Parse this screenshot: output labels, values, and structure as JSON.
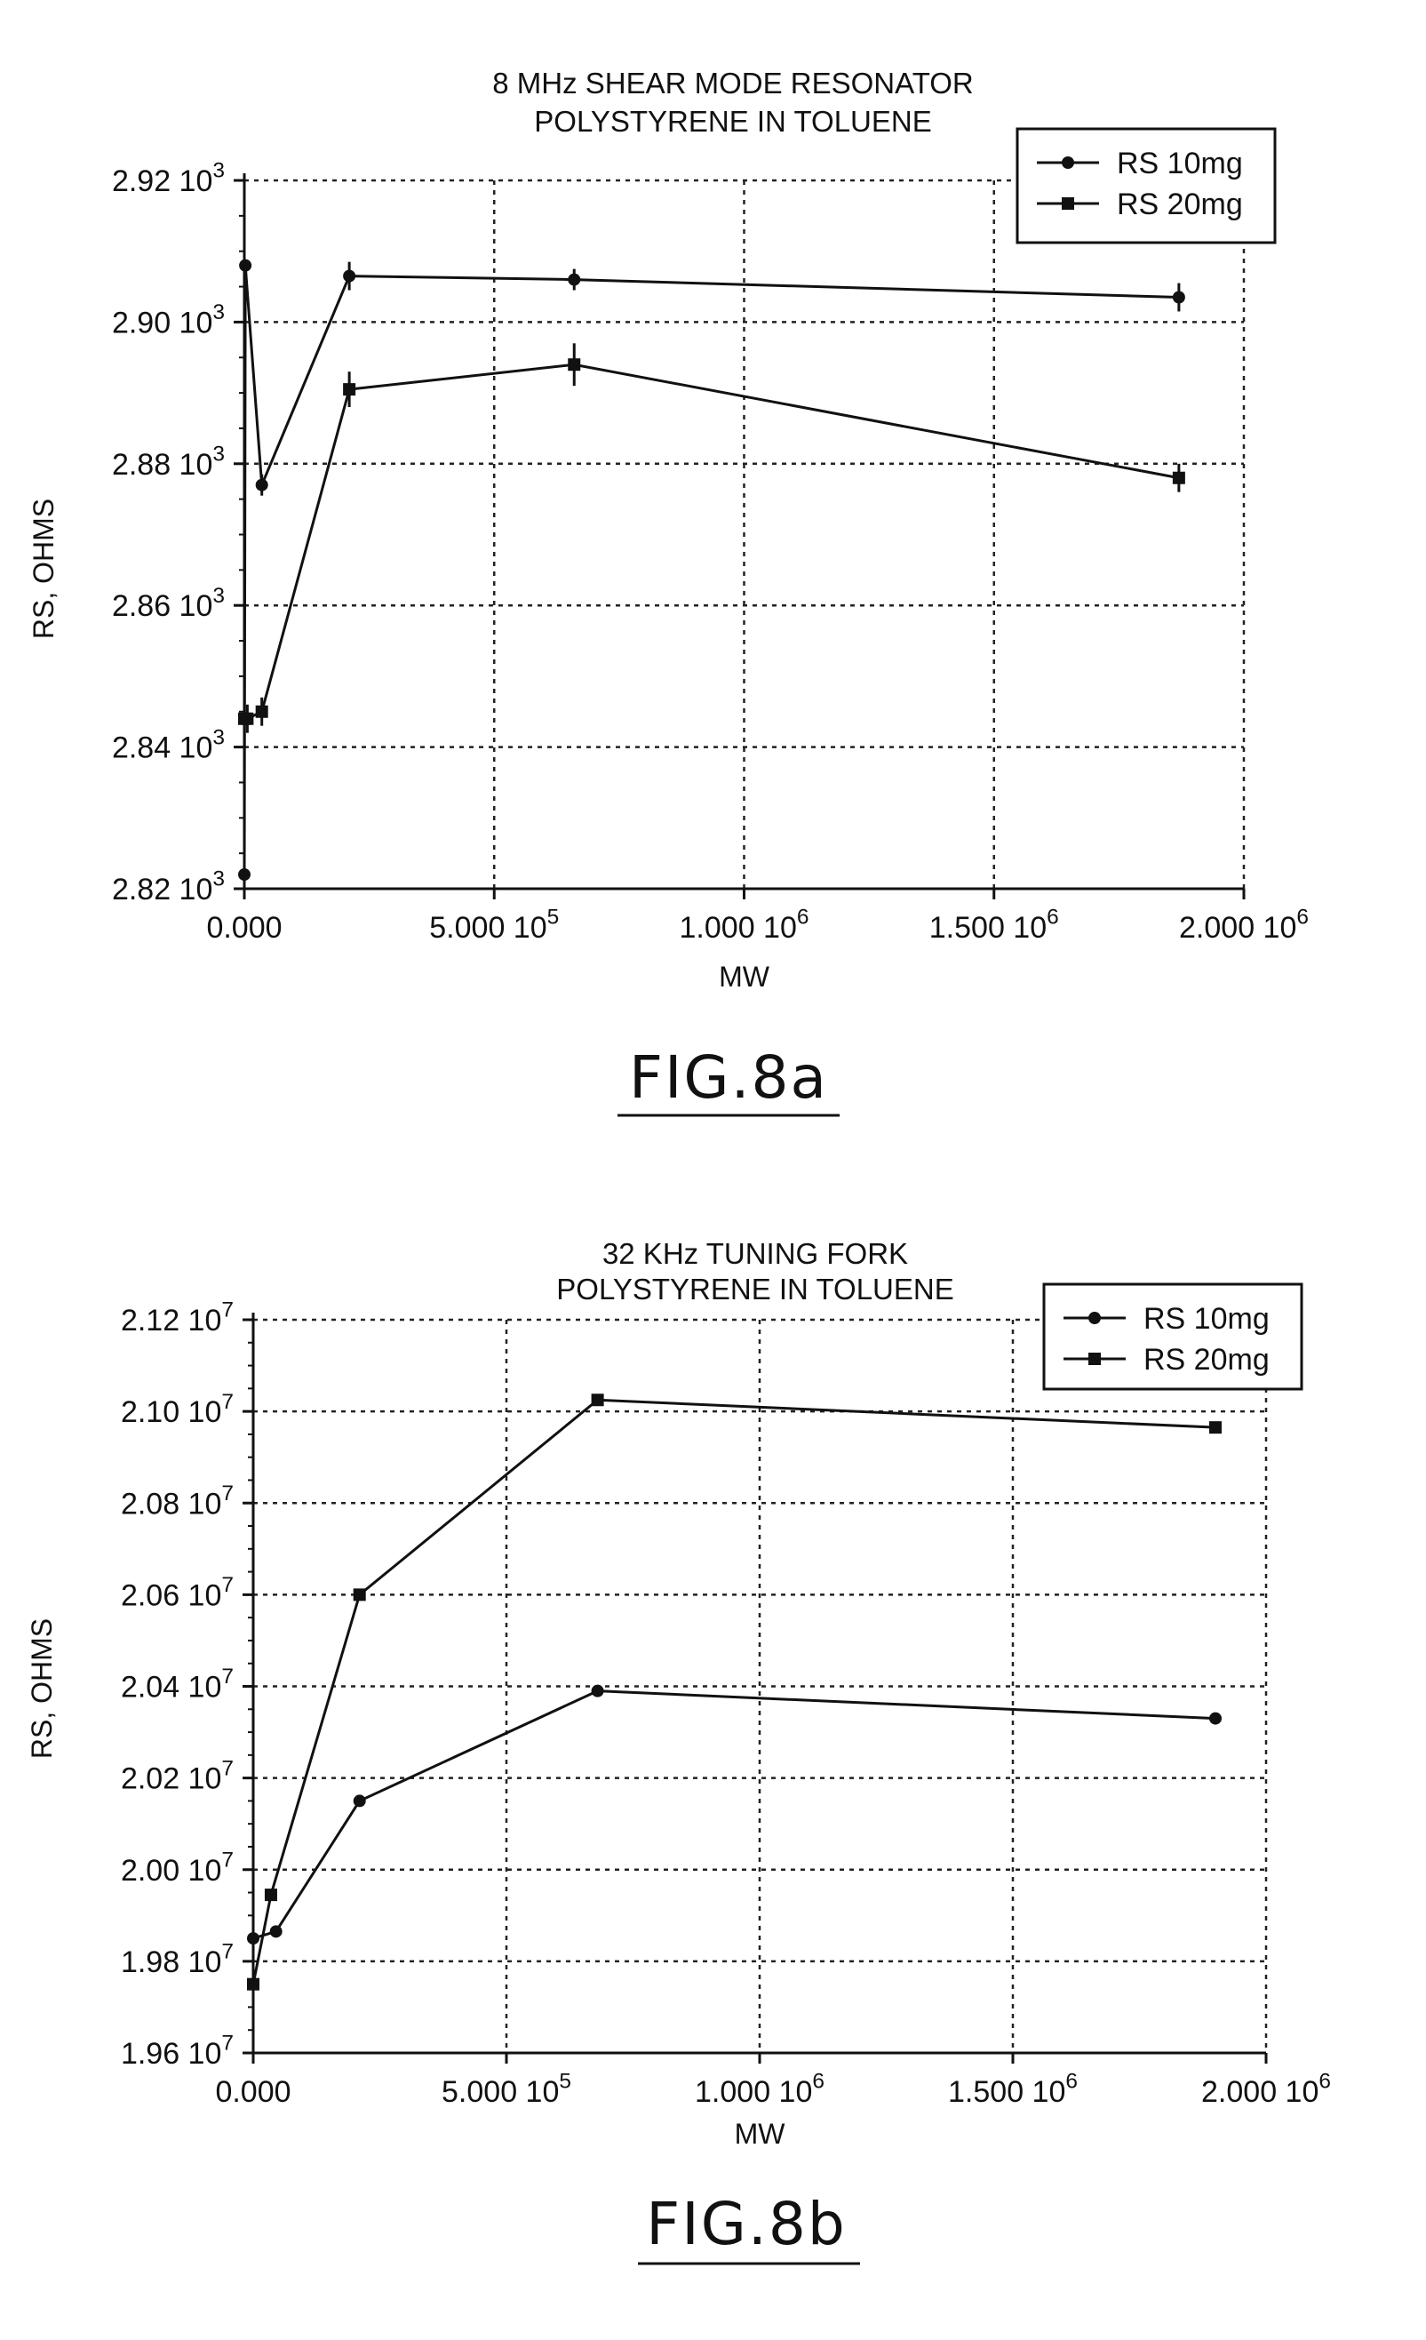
{
  "chart_data": [
    {
      "type": "line",
      "title": "8 MHz SHEAR MODE RESONATOR",
      "subtitle": "POLYSTYRENE IN TOLUENE",
      "xlabel": "MW",
      "ylabel": "RS, OHMS",
      "xlim": [
        0,
        2000000
      ],
      "ylim": [
        2820,
        2920
      ],
      "x_ticks": [
        0,
        500000,
        1000000,
        1500000,
        2000000
      ],
      "x_tick_labels": [
        {
          "base": "0.000",
          "exp": ""
        },
        {
          "base": "5.000 10",
          "exp": "5"
        },
        {
          "base": "1.000 10",
          "exp": "6"
        },
        {
          "base": "1.500 10",
          "exp": "6"
        },
        {
          "base": "2.000 10",
          "exp": "6"
        }
      ],
      "y_ticks": [
        2820,
        2840,
        2860,
        2880,
        2900,
        2920
      ],
      "y_tick_labels": [
        {
          "base": "2.82 10",
          "exp": "3"
        },
        {
          "base": "2.84 10",
          "exp": "3"
        },
        {
          "base": "2.86 10",
          "exp": "3"
        },
        {
          "base": "2.88 10",
          "exp": "3"
        },
        {
          "base": "2.90 10",
          "exp": "3"
        },
        {
          "base": "2.92 10",
          "exp": "3"
        }
      ],
      "grid": "dashed",
      "legend_position": "top-right",
      "series": [
        {
          "name": "RS 10mg",
          "marker": "circle",
          "x": [
            0,
            2000,
            35000,
            210000,
            660000,
            1870000
          ],
          "y": [
            2822,
            2908,
            2877,
            2906.5,
            2906,
            2903.5
          ],
          "err": [
            0,
            0,
            1.5,
            2,
            1.5,
            2
          ]
        },
        {
          "name": "RS 20mg",
          "marker": "square",
          "x": [
            0,
            6000,
            35000,
            210000,
            660000,
            1870000
          ],
          "y": [
            2844,
            2844,
            2845,
            2890.5,
            2894,
            2878
          ],
          "err": [
            0,
            2,
            2,
            2.5,
            3,
            2
          ]
        }
      ],
      "caption": "FIG.8a"
    },
    {
      "type": "line",
      "title": "32 KHz TUNING FORK",
      "subtitle": "POLYSTYRENE IN TOLUENE",
      "xlabel": "MW",
      "ylabel": "RS, OHMS",
      "xlim": [
        0,
        2000000
      ],
      "ylim": [
        19600000,
        21200000
      ],
      "x_ticks": [
        0,
        500000,
        1000000,
        1500000,
        2000000
      ],
      "x_tick_labels": [
        {
          "base": "0.000",
          "exp": ""
        },
        {
          "base": "5.000 10",
          "exp": "5"
        },
        {
          "base": "1.000 10",
          "exp": "6"
        },
        {
          "base": "1.500 10",
          "exp": "6"
        },
        {
          "base": "2.000 10",
          "exp": "6"
        }
      ],
      "y_ticks": [
        19600000,
        19800000,
        20000000,
        20200000,
        20400000,
        20600000,
        20800000,
        21000000,
        21200000
      ],
      "y_tick_labels": [
        {
          "base": "1.96 10",
          "exp": "7"
        },
        {
          "base": "1.98 10",
          "exp": "7"
        },
        {
          "base": "2.00 10",
          "exp": "7"
        },
        {
          "base": "2.02 10",
          "exp": "7"
        },
        {
          "base": "2.04 10",
          "exp": "7"
        },
        {
          "base": "2.06 10",
          "exp": "7"
        },
        {
          "base": "2.08 10",
          "exp": "7"
        },
        {
          "base": "2.10 10",
          "exp": "7"
        },
        {
          "base": "2.12 10",
          "exp": "7"
        }
      ],
      "grid": "dashed",
      "legend_position": "top-right",
      "series": [
        {
          "name": "RS 10mg",
          "marker": "circle",
          "x": [
            0,
            45000,
            210000,
            680000,
            1900000
          ],
          "y": [
            19850000,
            19865000,
            20150000,
            20390000,
            20330000
          ]
        },
        {
          "name": "RS 20mg",
          "marker": "square",
          "x": [
            0,
            35000,
            210000,
            680000,
            1900000
          ],
          "y": [
            19750000,
            19945000,
            20600000,
            21025000,
            20965000
          ]
        }
      ],
      "caption": "FIG.8b"
    }
  ]
}
